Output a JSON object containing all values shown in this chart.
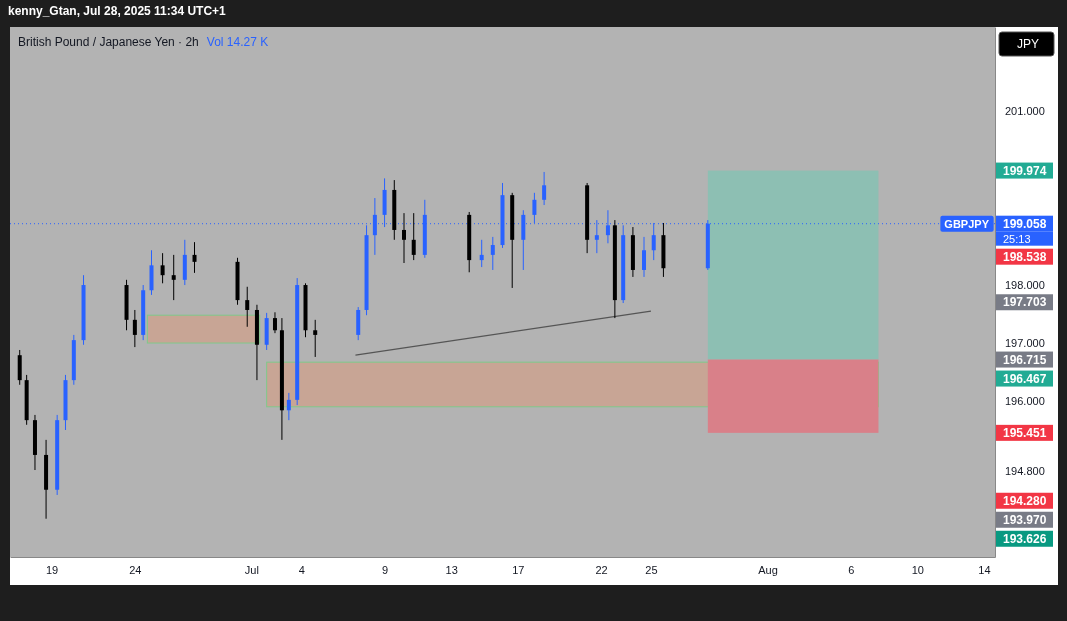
{
  "chart_data": {
    "type": "candlestick",
    "title": "British Pound / Japanese Yen · 2h",
    "subtitle": "Vol 14.27 K",
    "x": [
      "2025-06-17T02:00",
      "2025-06-17T12:00",
      "2025-06-18T00:00",
      "2025-06-18T16:00",
      "2025-06-19T08:00",
      "2025-06-19T20:00",
      "2025-06-20T08:00",
      "2025-06-20T22:00",
      "2025-06-23T12:00",
      "2025-06-24T00:00",
      "2025-06-24T12:00",
      "2025-06-25T00:00",
      "2025-06-25T16:00",
      "2025-06-26T08:00",
      "2025-06-27T00:00",
      "2025-06-27T14:00",
      "2025-06-30T04:00",
      "2025-06-30T18:00",
      "2025-07-01T08:00",
      "2025-07-01T22:00",
      "2025-07-02T10:00",
      "2025-07-02T20:00",
      "2025-07-03T06:00",
      "2025-07-03T18:00",
      "2025-07-04T06:00",
      "2025-07-04T20:00",
      "2025-07-07T10:00",
      "2025-07-07T22:00",
      "2025-07-08T10:00",
      "2025-07-09T00:00",
      "2025-07-09T14:00",
      "2025-07-10T04:00",
      "2025-07-10T18:00",
      "2025-07-11T10:00",
      "2025-07-14T02:00",
      "2025-07-14T20:00",
      "2025-07-15T12:00",
      "2025-07-16T02:00",
      "2025-07-16T16:00",
      "2025-07-17T08:00",
      "2025-07-18T00:00",
      "2025-07-18T14:00",
      "2025-07-21T04:00",
      "2025-07-21T18:00",
      "2025-07-22T10:00",
      "2025-07-22T20:00",
      "2025-07-23T08:00",
      "2025-07-23T22:00",
      "2025-07-24T14:00",
      "2025-07-25T04:00",
      "2025-07-25T18:00",
      "2025-07-28T10:00"
    ],
    "ohlc": [
      [
        196.79,
        196.88,
        196.28,
        196.36
      ],
      [
        196.36,
        196.45,
        195.59,
        195.67
      ],
      [
        195.67,
        195.76,
        194.81,
        195.07
      ],
      [
        195.07,
        195.33,
        193.97,
        194.47
      ],
      [
        194.47,
        195.76,
        194.38,
        195.67
      ],
      [
        195.67,
        196.45,
        195.5,
        196.36
      ],
      [
        196.36,
        197.14,
        196.28,
        197.05
      ],
      [
        197.05,
        198.17,
        196.97,
        198.0
      ],
      [
        198.0,
        198.09,
        197.22,
        197.4
      ],
      [
        197.4,
        197.57,
        196.93,
        197.14
      ],
      [
        197.14,
        198.0,
        197.05,
        197.91
      ],
      [
        197.91,
        198.6,
        197.83,
        198.34
      ],
      [
        198.34,
        198.55,
        198.03,
        198.17
      ],
      [
        198.17,
        198.52,
        197.74,
        198.09
      ],
      [
        198.09,
        198.78,
        198.0,
        198.52
      ],
      [
        198.52,
        198.74,
        198.21,
        198.4
      ],
      [
        198.4,
        198.47,
        197.66,
        197.74
      ],
      [
        197.74,
        197.97,
        197.28,
        197.57
      ],
      [
        197.57,
        197.66,
        196.36,
        196.97
      ],
      [
        196.97,
        197.52,
        196.88,
        197.43
      ],
      [
        197.43,
        197.53,
        197.17,
        197.22
      ],
      [
        197.22,
        197.43,
        195.33,
        195.84
      ],
      [
        195.84,
        196.14,
        195.67,
        196.02
      ],
      [
        196.02,
        198.12,
        195.93,
        198.0
      ],
      [
        198.0,
        198.03,
        197.1,
        197.22
      ],
      [
        197.22,
        197.4,
        196.76,
        197.14
      ],
      [
        197.14,
        197.62,
        197.05,
        197.57
      ],
      [
        197.57,
        199.03,
        197.48,
        198.86
      ],
      [
        198.86,
        199.5,
        198.52,
        199.21
      ],
      [
        199.21,
        199.84,
        199.0,
        199.64
      ],
      [
        199.64,
        199.81,
        198.78,
        198.95
      ],
      [
        198.95,
        199.24,
        198.38,
        198.78
      ],
      [
        198.78,
        199.24,
        198.43,
        198.52
      ],
      [
        198.52,
        199.47,
        198.47,
        199.21
      ],
      [
        199.21,
        199.26,
        198.22,
        198.43
      ],
      [
        198.43,
        198.78,
        198.31,
        198.52
      ],
      [
        198.52,
        198.83,
        198.26,
        198.69
      ],
      [
        198.69,
        199.76,
        198.64,
        199.55
      ],
      [
        199.55,
        199.59,
        197.95,
        198.78
      ],
      [
        198.78,
        199.29,
        198.26,
        199.21
      ],
      [
        199.21,
        199.59,
        199.07,
        199.47
      ],
      [
        199.47,
        199.95,
        199.38,
        199.72
      ],
      [
        199.72,
        199.76,
        198.55,
        198.78
      ],
      [
        198.78,
        199.12,
        198.55,
        198.86
      ],
      [
        198.86,
        199.29,
        198.72,
        199.03
      ],
      [
        199.03,
        199.12,
        197.43,
        197.74
      ],
      [
        197.74,
        199.03,
        197.69,
        198.86
      ],
      [
        198.86,
        199.0,
        198.14,
        198.26
      ],
      [
        198.26,
        198.83,
        198.14,
        198.6
      ],
      [
        198.6,
        199.07,
        198.43,
        198.86
      ],
      [
        198.86,
        199.07,
        198.14,
        198.29
      ],
      [
        198.29,
        199.12,
        198.26,
        199.058
      ]
    ],
    "colors": [
      "#000000",
      "#000000",
      "#000000",
      "#000000",
      "#2962ff",
      "#2962ff",
      "#2962ff",
      "#2962ff",
      "#000000",
      "#000000",
      "#2962ff",
      "#2962ff",
      "#000000",
      "#000000",
      "#2962ff",
      "#000000",
      "#000000",
      "#000000",
      "#000000",
      "#2962ff",
      "#000000",
      "#000000",
      "#2962ff",
      "#2962ff",
      "#000000",
      "#000000",
      "#2962ff",
      "#2962ff",
      "#2962ff",
      "#2962ff",
      "#000000",
      "#000000",
      "#000000",
      "#2962ff",
      "#000000",
      "#2962ff",
      "#2962ff",
      "#2962ff",
      "#000000",
      "#2962ff",
      "#2962ff",
      "#2962ff",
      "#000000",
      "#2962ff",
      "#2962ff",
      "#000000",
      "#2962ff",
      "#000000",
      "#2962ff",
      "#2962ff",
      "#000000",
      "#2962ff"
    ],
    "series": [
      {
        "type": "line",
        "color": "#555555",
        "x": [
          "2025-07-07T06:00",
          "2025-07-25T00:00"
        ],
        "values": [
          196.79,
          197.55
        ]
      }
    ],
    "xlim": [
      "2025-06-16T12:00",
      "2025-08-14T16:00"
    ],
    "xticks": [
      {
        "value": "2025-06-19",
        "label": "19"
      },
      {
        "value": "2025-06-24",
        "label": "24"
      },
      {
        "value": "2025-07-01",
        "label": "Jul"
      },
      {
        "value": "2025-07-04",
        "label": "4"
      },
      {
        "value": "2025-07-09",
        "label": "9"
      },
      {
        "value": "2025-07-13",
        "label": "13"
      },
      {
        "value": "2025-07-17",
        "label": "17"
      },
      {
        "value": "2025-07-22",
        "label": "22"
      },
      {
        "value": "2025-07-25",
        "label": "25"
      },
      {
        "value": "2025-08-01",
        "label": "Aug"
      },
      {
        "value": "2025-08-06",
        "label": "6"
      },
      {
        "value": "2025-08-10",
        "label": "10"
      },
      {
        "value": "2025-08-14",
        "label": "14"
      }
    ],
    "ylim": [
      193.31,
      202.45
    ],
    "yticks": [
      {
        "value": 201,
        "label": "201.000"
      },
      {
        "value": 198,
        "label": "198.000"
      },
      {
        "value": 197,
        "label": "197.000"
      },
      {
        "value": 196,
        "label": "196.000"
      },
      {
        "value": 194.8,
        "label": "194.800"
      }
    ],
    "ref_lines": [
      {
        "axis": "y",
        "value": 199.058,
        "label": "GBPJPY",
        "color": "#2962ff",
        "line_style": "dotted"
      }
    ],
    "bands": [
      {
        "axis": "y",
        "from": 197.0,
        "to": 197.48,
        "color": "#c8a595"
      },
      {
        "axis": "y",
        "from": 195.9,
        "to": 196.67,
        "color": "#c8a595"
      },
      {
        "axis": "y",
        "from": 196.715,
        "to": 199.974,
        "color": "#8dbfb3"
      },
      {
        "axis": "y",
        "from": 195.451,
        "to": 196.715,
        "color": "#d98089"
      }
    ],
    "annotations": [
      "kenny_Gtan, Jul 28, 2025 11:34 UTC+1",
      "JPY",
      "25:13",
      "199.974",
      "199.058",
      "198.538",
      "197.703",
      "196.715",
      "196.467",
      "195.451",
      "194.280",
      "193.970",
      "193.626"
    ]
  }
}
